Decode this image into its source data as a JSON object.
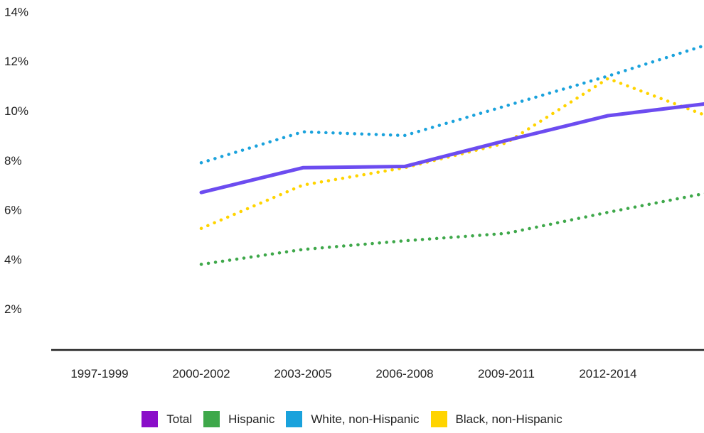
{
  "chart_data": {
    "type": "line",
    "categories": [
      "1997-1999",
      "2000-2002",
      "2003-2005",
      "2006-2008",
      "2009-2011",
      "2012-2014"
    ],
    "ylim": [
      0,
      14
    ],
    "yticks": [
      "2%",
      "4%",
      "6%",
      "8%",
      "10%",
      "12%",
      "14%"
    ],
    "ytick_values": [
      2,
      4,
      6,
      8,
      10,
      12,
      14
    ],
    "series": [
      {
        "name": "Total",
        "style": "solid",
        "color": "#6c4cf0",
        "legend_color": "#8a0ec9",
        "values": [
          6.7,
          7.7,
          7.75,
          8.8,
          9.8,
          10.3
        ]
      },
      {
        "name": "Hispanic",
        "style": "dotted",
        "color": "#3ea84a",
        "legend_color": "#3ea84a",
        "values": [
          3.8,
          4.4,
          4.75,
          5.05,
          5.9,
          6.7
        ]
      },
      {
        "name": "White, non-Hispanic",
        "style": "dotted",
        "color": "#1aa2dc",
        "legend_color": "#1aa2dc",
        "values": [
          7.9,
          9.15,
          9.0,
          10.2,
          11.4,
          12.7
        ]
      },
      {
        "name": "Black, non-Hispanic",
        "style": "dotted",
        "color": "#ffd400",
        "legend_color": "#ffd400",
        "values": [
          5.25,
          7.0,
          7.7,
          8.7,
          11.3,
          9.75
        ]
      }
    ],
    "grid": false,
    "legend_position": "bottom-center"
  }
}
